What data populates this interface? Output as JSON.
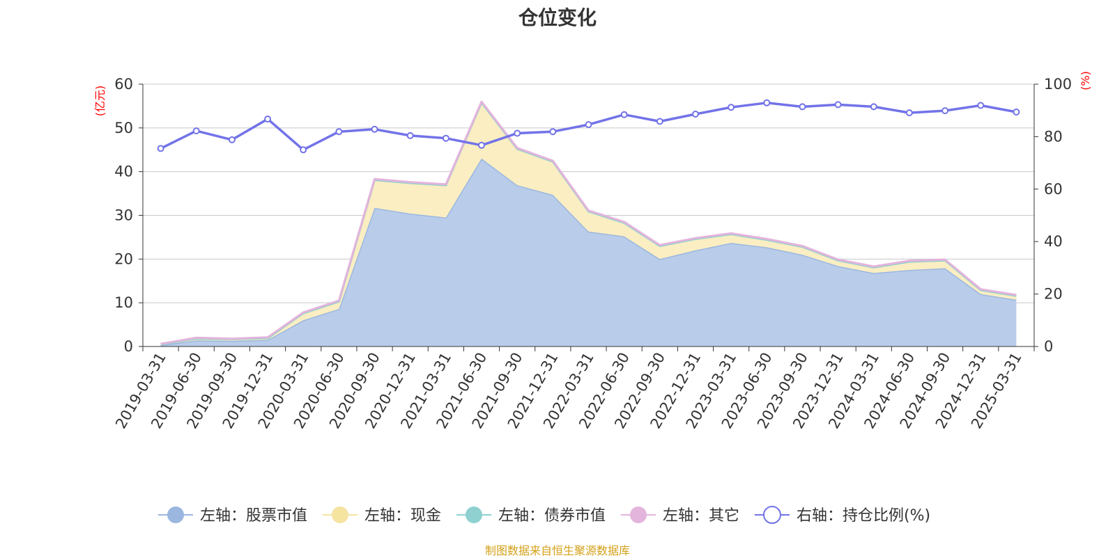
{
  "chart_data": {
    "type": "area",
    "title": "仓位变化",
    "left_axis_unit": "(亿元)",
    "right_axis_unit": "(%)",
    "left_ylim": [
      0,
      60
    ],
    "left_ticks": [
      0,
      10,
      20,
      30,
      40,
      50,
      60
    ],
    "right_ylim": [
      0,
      100
    ],
    "right_ticks": [
      0,
      20,
      40,
      60,
      80,
      100
    ],
    "grid": true,
    "legend_position": "bottom",
    "categories": [
      "2019-03-31",
      "2019-06-30",
      "2019-09-30",
      "2019-12-31",
      "2020-03-31",
      "2020-06-30",
      "2020-09-30",
      "2020-12-31",
      "2021-03-31",
      "2021-06-30",
      "2021-09-30",
      "2021-12-31",
      "2022-03-31",
      "2022-06-30",
      "2022-09-30",
      "2022-12-31",
      "2023-03-31",
      "2023-06-30",
      "2023-09-30",
      "2023-12-31",
      "2024-03-31",
      "2024-06-30",
      "2024-09-30",
      "2024-12-31",
      "2025-03-31"
    ],
    "series": [
      {
        "name": "左轴：股票市值",
        "axis": "left",
        "type": "stacked-area",
        "color": "#9bb7e0",
        "fill": "#b9cdea",
        "values": [
          0.3,
          1.4,
          1.3,
          1.5,
          6.0,
          8.6,
          31.7,
          30.4,
          29.5,
          43.0,
          36.9,
          34.7,
          26.3,
          25.2,
          20.0,
          22.0,
          23.7,
          22.7,
          21.0,
          18.4,
          16.8,
          17.5,
          17.9,
          12.0,
          10.7
        ]
      },
      {
        "name": "左轴：现金",
        "axis": "left",
        "type": "stacked-area",
        "color": "#f5e3a0",
        "fill": "#faeec2",
        "values": [
          0.2,
          0.4,
          0.4,
          0.4,
          1.6,
          1.7,
          6.4,
          7.0,
          7.4,
          12.8,
          8.3,
          7.6,
          4.6,
          3.1,
          3.0,
          2.6,
          2.0,
          1.7,
          1.8,
          1.3,
          1.3,
          1.9,
          1.8,
          0.9,
          0.9
        ]
      },
      {
        "name": "左轴：债券市值",
        "axis": "left",
        "type": "stacked-area",
        "color": "#8fd0d0",
        "fill": "#a8dcdc",
        "values": [
          0,
          0,
          0,
          0,
          0,
          0,
          0,
          0,
          0,
          0,
          0,
          0,
          0,
          0,
          0,
          0,
          0,
          0,
          0,
          0,
          0,
          0,
          0,
          0,
          0
        ]
      },
      {
        "name": "左轴：其它",
        "axis": "left",
        "type": "stacked-area",
        "color": "#e3b4dc",
        "fill": "#f0cdea",
        "values": [
          0.1,
          0.2,
          0.1,
          0.2,
          0.2,
          0.2,
          0.2,
          0.2,
          0.2,
          0.2,
          0.2,
          0.2,
          0.2,
          0.2,
          0.2,
          0.2,
          0.2,
          0.2,
          0.2,
          0.2,
          0.2,
          0.2,
          0.2,
          0.2,
          0.2
        ]
      },
      {
        "name": "右轴：持仓比例(%)",
        "axis": "right",
        "type": "line",
        "color": "#7273e8",
        "values": [
          75.5,
          82.2,
          78.8,
          86.7,
          75.0,
          81.9,
          82.8,
          80.4,
          79.4,
          76.7,
          81.3,
          81.9,
          84.6,
          88.4,
          85.8,
          88.6,
          91.2,
          92.9,
          91.4,
          92.2,
          91.4,
          89.1,
          89.9,
          91.9,
          89.4
        ]
      }
    ]
  },
  "source_note": "制图数据来自恒生聚源数据库",
  "colors": {
    "axis_unit": "#ff0000",
    "source_note": "#d4a017",
    "axis_text": "#333333",
    "grid": "#c8c8c8"
  }
}
